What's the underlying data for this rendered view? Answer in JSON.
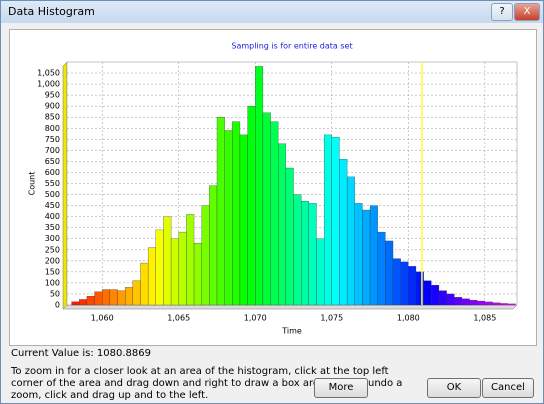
{
  "window": {
    "title": "Data Histogram",
    "help": "?",
    "close": "X"
  },
  "chart_data": {
    "type": "histogram",
    "title": "Sampling is for entire data set",
    "x_label": "Time",
    "y_label": "Count",
    "bins": [
      1058,
      1058.5,
      1059,
      1059.5,
      1060,
      1060.5,
      1061,
      1061.5,
      1062,
      1062.5,
      1063,
      1063.5,
      1064,
      1064.5,
      1065,
      1065.5,
      1066,
      1066.5,
      1067,
      1067.5,
      1068,
      1068.5,
      1069,
      1069.5,
      1070,
      1070.5,
      1071,
      1071.5,
      1072,
      1072.5,
      1073,
      1073.5,
      1074,
      1074.5,
      1075,
      1075.5,
      1076,
      1076.5,
      1077,
      1077.5,
      1078,
      1078.5,
      1079,
      1079.5,
      1080,
      1080.5,
      1081,
      1081.5,
      1082,
      1082.5,
      1083,
      1083.5,
      1084,
      1084.5,
      1085,
      1085.5,
      1086,
      1086.5,
      1087
    ],
    "values": [
      15,
      25,
      40,
      60,
      70,
      70,
      65,
      80,
      110,
      190,
      260,
      340,
      400,
      300,
      330,
      410,
      280,
      450,
      540,
      850,
      790,
      830,
      770,
      900,
      1080,
      870,
      830,
      730,
      620,
      500,
      470,
      460,
      300,
      770,
      760,
      660,
      580,
      460,
      430,
      450,
      330,
      290,
      210,
      195,
      175,
      150,
      110,
      90,
      65,
      50,
      35,
      28,
      22,
      18,
      14,
      10,
      7,
      5
    ],
    "colormap": "rainbow",
    "xlim": [
      1057.7,
      1087.1
    ],
    "xticks": [
      {
        "value": 1060,
        "label": "1,060"
      },
      {
        "value": 1065,
        "label": "1,065"
      },
      {
        "value": 1070,
        "label": "1,070"
      },
      {
        "value": 1075,
        "label": "1,075"
      },
      {
        "value": 1080,
        "label": "1,080"
      },
      {
        "value": 1085,
        "label": "1,085"
      }
    ],
    "ylim": [
      0,
      1100
    ],
    "yticks": [
      0,
      50,
      100,
      150,
      200,
      250,
      300,
      350,
      400,
      450,
      500,
      550,
      600,
      650,
      700,
      750,
      800,
      850,
      900,
      950,
      {
        "value": 1000,
        "label": "1,000"
      },
      {
        "value": 1050,
        "label": "1,050"
      }
    ],
    "grid": true,
    "marker": {
      "value": 1080.8869,
      "color": "#ffff33"
    }
  },
  "status": "Current Value is: 1080.8869",
  "instructions": [
    "To zoom in for a closer look at an area of the histogram, click at the top left",
    "corner of the area and drag down and right to draw a box around it. To undo a",
    "zoom, click and drag up and to the left."
  ],
  "buttons": {
    "more": "More",
    "ok": "OK",
    "cancel": "Cancel"
  }
}
